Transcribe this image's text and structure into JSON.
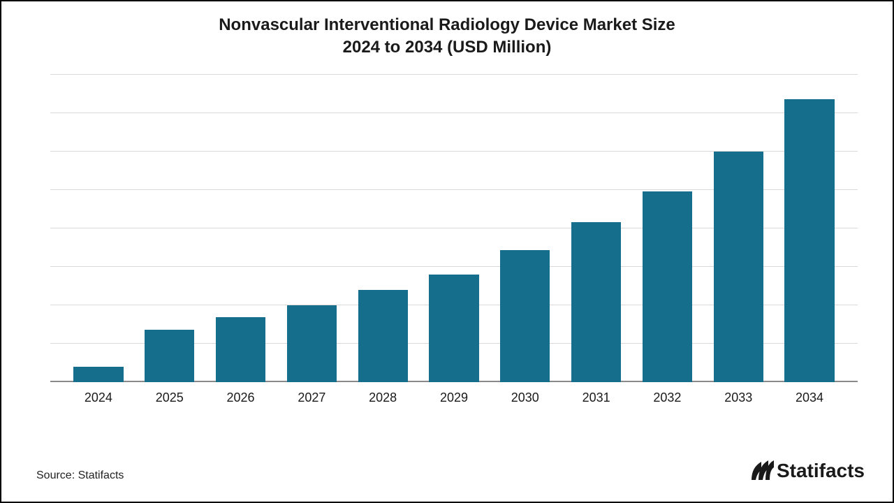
{
  "chart": {
    "type": "bar",
    "title_line1": "Nonvascular Interventional Radiology Device Market Size",
    "title_line2": "2024 to 2034 (USD Million)",
    "title_fontsize": 24,
    "title_color": "#1a1a1a",
    "categories": [
      "2024",
      "2025",
      "2026",
      "2027",
      "2028",
      "2029",
      "2030",
      "2031",
      "2032",
      "2033",
      "2034"
    ],
    "values": [
      5,
      17,
      21,
      25,
      30,
      35,
      43,
      52,
      62,
      75,
      92
    ],
    "ylim": [
      0,
      100
    ],
    "gridline_positions": [
      0,
      12.5,
      25,
      37.5,
      50,
      62.5,
      75,
      87.5,
      100
    ],
    "bar_color": "#156f8c",
    "bar_width_pct": 70,
    "grid_color": "#d9d9d9",
    "baseline_color": "#8a8a8a",
    "background_color": "#ffffff",
    "xlabel_fontsize": 18,
    "xlabel_color": "#1a1a1a"
  },
  "footer": {
    "source_text": "Source: Statifacts",
    "source_fontsize": 16,
    "source_color": "#222222",
    "brand_text": "Statifacts",
    "brand_fontsize": 28,
    "brand_color": "#1a1a1a"
  }
}
